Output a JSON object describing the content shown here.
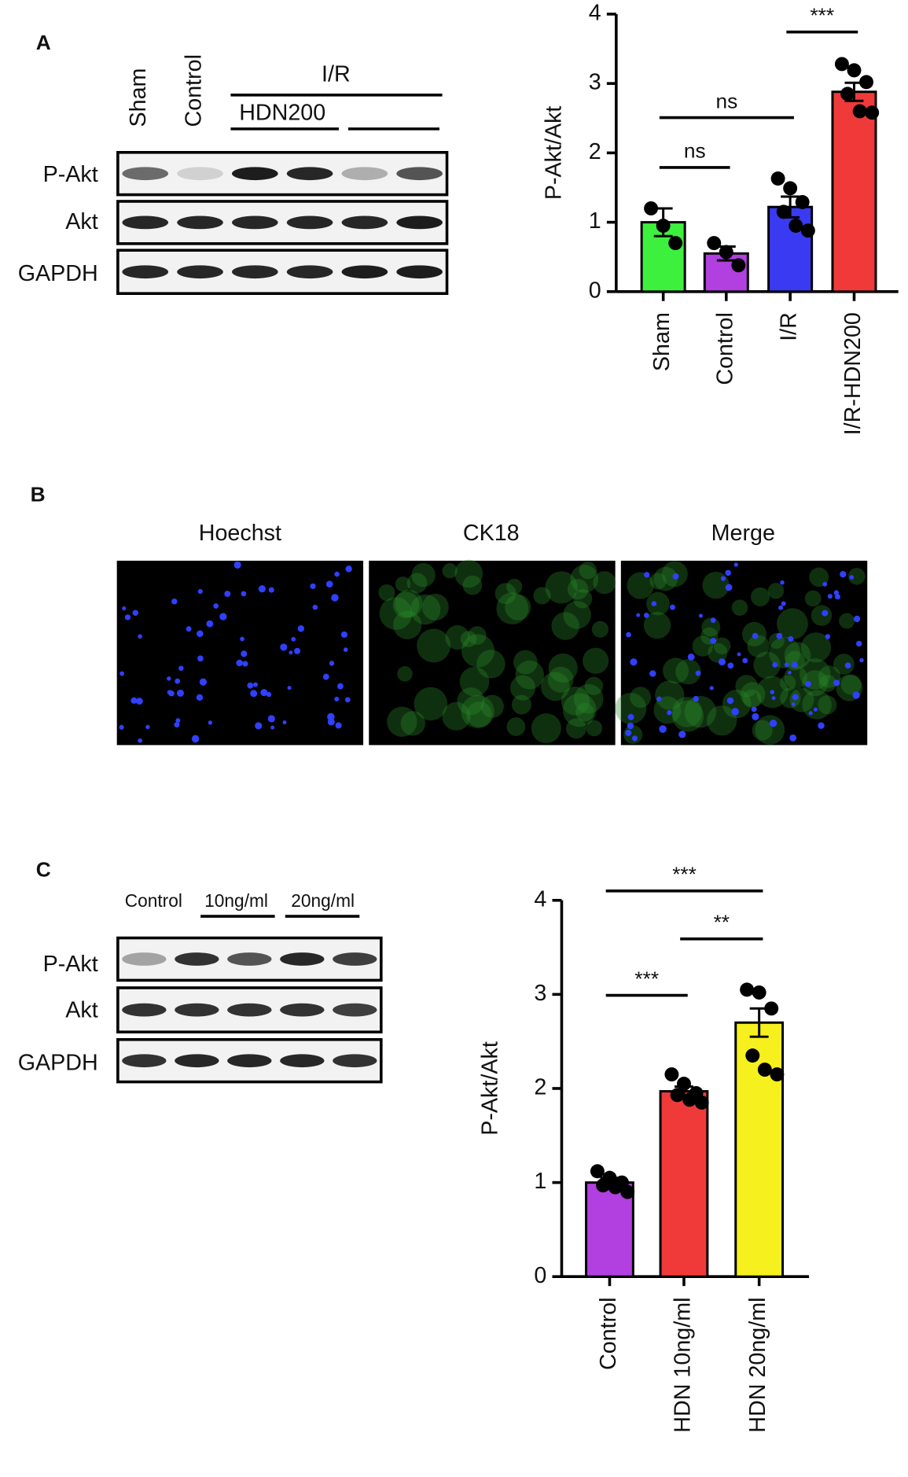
{
  "panels": {
    "a": {
      "label": "A",
      "lanes": [
        "Sham",
        "Control"
      ],
      "group": "I/R",
      "subgroup": "HDN200",
      "rows": [
        "P-Akt",
        "Akt",
        "GAPDH"
      ]
    },
    "b": {
      "label": "B",
      "columns": [
        "Hoechst",
        "CK18",
        "Merge"
      ]
    },
    "c": {
      "label": "C",
      "lanes": [
        "Control",
        "10ng/ml",
        "20ng/ml"
      ],
      "rows": [
        "P-Akt",
        "Akt",
        "GAPDH"
      ]
    }
  },
  "chart_data": [
    {
      "type": "bar",
      "ylabel": "P-Akt/Akt",
      "categories": [
        "Sham",
        "Control",
        "I/R",
        "I/R-HDN200"
      ],
      "series": [
        {
          "colors": [
            "#3ef03e",
            "#b23fe0",
            "#3a3af2",
            "#f03a3a"
          ],
          "values": [
            1.0,
            0.55,
            1.22,
            2.88
          ],
          "errors": [
            0.2,
            0.1,
            0.15,
            0.13
          ],
          "points": [
            [
              1.2,
              0.95,
              0.7
            ],
            [
              0.7,
              0.57,
              0.38
            ],
            [
              1.63,
              1.49,
              1.29,
              1.15,
              0.95,
              0.88
            ],
            [
              3.28,
              3.19,
              3.02,
              2.85,
              2.6,
              2.58
            ]
          ]
        }
      ],
      "ylim": [
        0,
        4
      ],
      "yticks": [
        0,
        1,
        2,
        3,
        4
      ],
      "annotations": [
        "***",
        "ns",
        "ns"
      ]
    },
    {
      "type": "bar",
      "ylabel": "P-Akt/Akt",
      "categories": [
        "Control",
        "HDN 10ng/ml",
        "HDN 20ng/ml"
      ],
      "series": [
        {
          "colors": [
            "#b23fe0",
            "#f03a3a",
            "#f5f01e"
          ],
          "values": [
            1.0,
            1.97,
            2.7
          ],
          "errors": [
            0.05,
            0.05,
            0.15
          ],
          "points": [
            [
              1.12,
              1.05,
              1.0,
              0.97,
              0.95,
              0.9
            ],
            [
              2.15,
              2.05,
              1.95,
              1.93,
              1.88,
              1.85
            ],
            [
              3.05,
              3.02,
              2.85,
              2.35,
              2.2,
              2.15
            ]
          ]
        }
      ],
      "ylim": [
        0,
        4
      ],
      "yticks": [
        0,
        1,
        2,
        3,
        4
      ],
      "annotations": [
        "***",
        "**",
        "***"
      ]
    }
  ]
}
